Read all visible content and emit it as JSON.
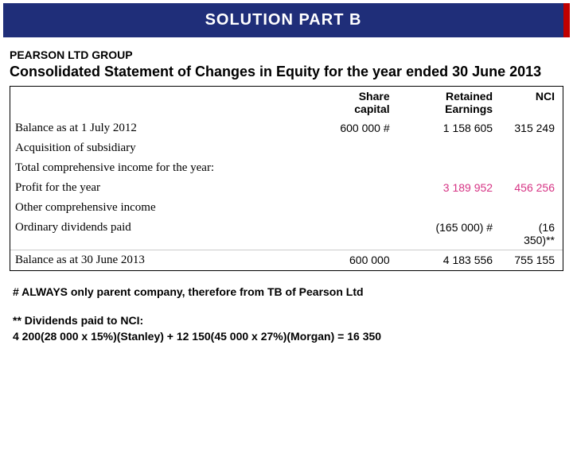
{
  "header": {
    "title": "SOLUTION PART B"
  },
  "company": "PEARSON LTD GROUP",
  "statement_title": "Consolidated Statement of Changes in Equity for the year ended 30 June 2013",
  "columns": {
    "c1": "Share capital",
    "c2": "Retained Earnings",
    "c3": "NCI"
  },
  "rows": {
    "r1": {
      "label": "Balance as at 1 July 2012",
      "c1": "600 000 #",
      "c2": "1 158 605",
      "c3": "315 249"
    },
    "r2": {
      "label": "Acquisition of subsidiary",
      "c1": "",
      "c2": "",
      "c3": ""
    },
    "r3": {
      "label": "Total comprehensive income for the year:",
      "c1": "",
      "c2": "",
      "c3": ""
    },
    "r4": {
      "label": "Profit for the year",
      "c1": "",
      "c2": "3 189 952",
      "c3": "456 256"
    },
    "r5": {
      "label": "Other comprehensive income",
      "c1": "",
      "c2": "",
      "c3": ""
    },
    "r6": {
      "label": "Ordinary dividends paid",
      "c1": "",
      "c2": "(165 000) #",
      "c3": "(16 350)**"
    },
    "r7": {
      "label": "Balance as at 30 June 2013",
      "c1": "600 000",
      "c2": "4 183 556",
      "c3": "755 155"
    }
  },
  "colors": {
    "header_bg": "#1f2e79",
    "header_accent": "#c00000",
    "pink": "#d63384",
    "text": "#000000"
  },
  "notes": {
    "n1": "# ALWAYS only parent company, therefore from TB of Pearson Ltd",
    "n2": "** Dividends paid to NCI:",
    "calc": "4 200(28 000 x 15%)(Stanley) + 12 150(45 000 x 27%)(Morgan) = 16 350"
  }
}
